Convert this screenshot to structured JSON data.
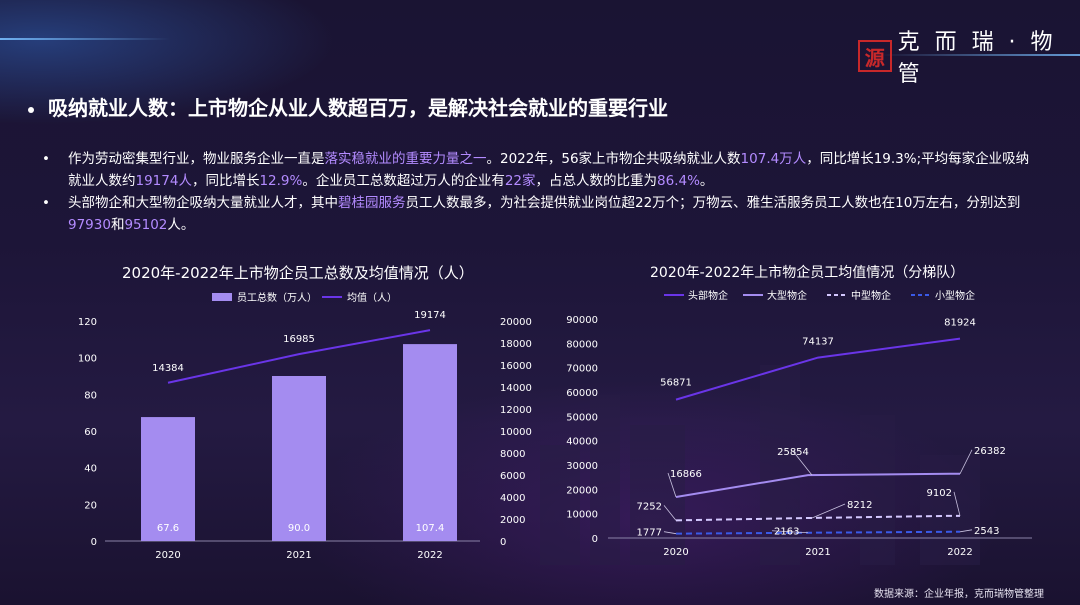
{
  "brand": {
    "seal": "源",
    "name": "克 而 瑞 · 物管"
  },
  "headline": "吸纳就业人数：上市物企从业人数超百万，是解决社会就业的重要行业",
  "bullets": [
    [
      {
        "t": "作为劳动密集型行业，物业服务企业一直是"
      },
      {
        "t": "落实稳就业的重要力量之一",
        "hl": true
      },
      {
        "t": "。2022年，56家上市物企共吸纳就业人数"
      },
      {
        "t": "107.4万人",
        "hl": true
      },
      {
        "t": "，同比增长19.3%;平均每家企业吸纳就业人数约"
      },
      {
        "t": "19174人",
        "hl": true
      },
      {
        "t": "，同比增长"
      },
      {
        "t": "12.9%",
        "hl": true
      },
      {
        "t": "。企业员工总数超过万人的企业有"
      },
      {
        "t": "22家",
        "hl": true
      },
      {
        "t": "，占总人数的比重为"
      },
      {
        "t": "86.4%",
        "hl": true
      },
      {
        "t": "。"
      }
    ],
    [
      {
        "t": "头部物企和大型物企吸纳大量就业人才，其中"
      },
      {
        "t": "碧桂园服务",
        "hl": true
      },
      {
        "t": "员工人数最多，为社会提供就业岗位超22万个；万物云、雅生活服务员工人数也在10万左右，分别达到"
      },
      {
        "t": "97930",
        "hl": true
      },
      {
        "t": "和"
      },
      {
        "t": "95102",
        "hl": true
      },
      {
        "t": "人。"
      }
    ]
  ],
  "colors": {
    "bar": "#a48cf0",
    "avg_line": "#6a35e8",
    "highlight": "#b38bff",
    "top": "#6a35e8",
    "large": "#a48cf0",
    "mid": "#d4c8ff",
    "small": "#3a5ae8"
  },
  "chart_data": [
    {
      "type": "bar",
      "title": "2020年-2022年上市物企员工总数及均值情况（人）",
      "categories": [
        "2020",
        "2021",
        "2022"
      ],
      "series": [
        {
          "name": "员工总数（万人）",
          "type": "bar",
          "axis": "left",
          "values": [
            67.6,
            90.0,
            107.4
          ],
          "labels": [
            "67.6",
            "90.0",
            "107.4"
          ]
        },
        {
          "name": "均值（人）",
          "type": "line",
          "axis": "right",
          "values": [
            14384,
            16985,
            19174
          ],
          "labels": [
            "14384",
            "16985",
            "19174"
          ]
        }
      ],
      "left_axis": {
        "ylim": [
          0,
          120
        ],
        "ticks": [
          "0",
          "20",
          "40",
          "60",
          "80",
          "100",
          "120"
        ]
      },
      "right_axis": {
        "ylim": [
          0,
          20000
        ],
        "ticks": [
          "0",
          "2000",
          "4000",
          "6000",
          "8000",
          "10000",
          "12000",
          "14000",
          "16000",
          "18000",
          "20000"
        ]
      },
      "legend": "top-center"
    },
    {
      "type": "line",
      "title": "2020年-2022年上市物企员工均值情况（分梯队）",
      "categories": [
        "2020",
        "2021",
        "2022"
      ],
      "series": [
        {
          "name": "头部物企",
          "style": "solid",
          "values": [
            56871,
            74137,
            81924
          ],
          "labels": [
            "56871",
            "74137",
            "81924"
          ]
        },
        {
          "name": "大型物企",
          "style": "solid",
          "values": [
            16866,
            25854,
            26382
          ],
          "labels": [
            "16866",
            "25854",
            "26382"
          ]
        },
        {
          "name": "中型物企",
          "style": "dashed",
          "values": [
            7252,
            8212,
            9102
          ],
          "labels": [
            "7252",
            "8212",
            "9102"
          ]
        },
        {
          "name": "小型物企",
          "style": "dashed",
          "values": [
            1777,
            2163,
            2543
          ],
          "labels": [
            "1777",
            "2163",
            "2543"
          ]
        }
      ],
      "y_axis": {
        "ylim": [
          0,
          90000
        ],
        "ticks": [
          "0",
          "10000",
          "20000",
          "30000",
          "40000",
          "50000",
          "60000",
          "70000",
          "80000",
          "90000"
        ]
      },
      "legend": "top-center"
    }
  ],
  "source": "数据来源：企业年报，克而瑞物管整理"
}
